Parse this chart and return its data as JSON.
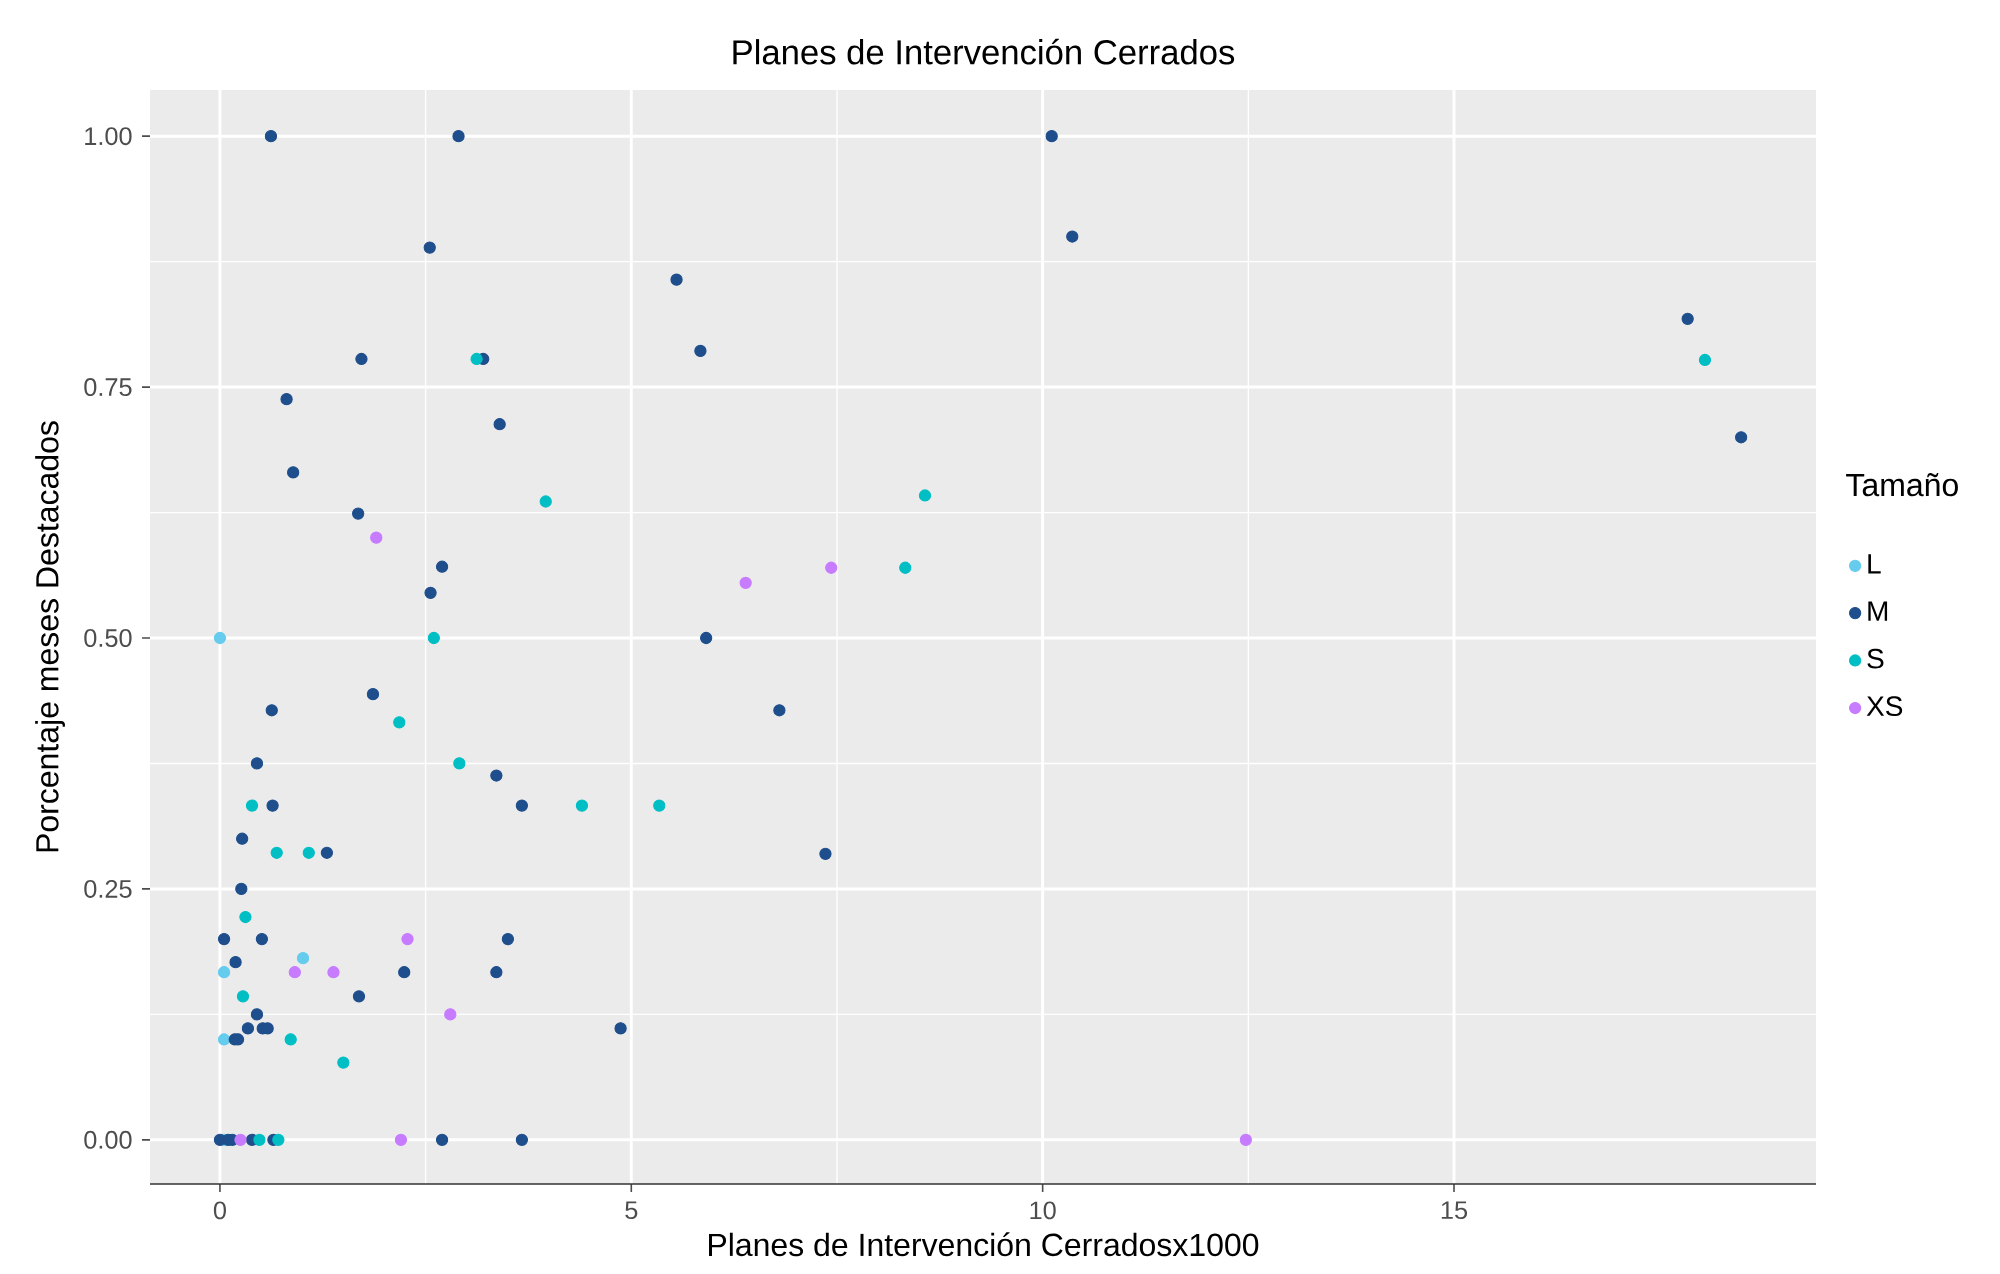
{
  "chart_data": {
    "type": "scatter",
    "title": "Planes de Intervención Cerrados",
    "xlabel": "Planes de Intervención Cerradosx1000",
    "ylabel": "Porcentaje meses Destacados",
    "legend_title": "Tamaño",
    "xlim": [
      -0.85,
      19.4
    ],
    "ylim": [
      -0.044,
      1.046
    ],
    "xticks": [
      0,
      5,
      10,
      15
    ],
    "yticks": [
      {
        "value": 0,
        "label": "0.00"
      },
      {
        "value": 0.25,
        "label": "0.25"
      },
      {
        "value": 0.5,
        "label": "0.50"
      },
      {
        "value": 0.75,
        "label": "0.75"
      },
      {
        "value": 1,
        "label": "1.00"
      }
    ],
    "grid": true,
    "legend": "right",
    "marker": "circle",
    "series": [
      {
        "name": "L",
        "color": "#66ccee",
        "x": [
          0.0,
          0.05,
          0.05,
          1.01,
          0.05
        ],
        "values": [
          0.5,
          0.167,
          0.1,
          0.181,
          0.0
        ]
      },
      {
        "name": "M",
        "color": "#1f4e8c",
        "x": [
          0.62,
          2.9,
          2.55,
          5.55,
          1.72,
          3.2,
          5.84,
          0.81,
          3.4,
          0.89,
          1.68,
          2.7,
          2.56,
          5.91,
          1.86,
          0.63,
          0.45,
          3.36,
          0.64,
          3.67,
          0.27,
          1.3,
          0.26,
          0.05,
          0.51,
          3.5,
          0.19,
          2.24,
          3.36,
          1.69,
          0.45,
          0.34,
          0.52,
          0.58,
          0.18,
          0.22,
          4.87,
          10.11,
          10.36,
          6.8,
          7.36,
          17.84,
          18.49,
          0.0,
          0.1,
          0.15,
          0.39,
          0.65,
          2.7,
          3.67
        ],
        "values": [
          1.0,
          1.0,
          0.889,
          0.857,
          0.778,
          0.778,
          0.786,
          0.738,
          0.713,
          0.665,
          0.624,
          0.571,
          0.545,
          0.5,
          0.444,
          0.428,
          0.375,
          0.363,
          0.333,
          0.333,
          0.3,
          0.286,
          0.25,
          0.2,
          0.2,
          0.2,
          0.177,
          0.167,
          0.167,
          0.143,
          0.125,
          0.111,
          0.111,
          0.111,
          0.1,
          0.1,
          0.111,
          1.0,
          0.9,
          0.428,
          0.285,
          0.818,
          0.7,
          0.0,
          0.0,
          0.0,
          0.0,
          0.0,
          0.0,
          0.0
        ]
      },
      {
        "name": "S",
        "color": "#00bfc4",
        "x": [
          3.12,
          8.57,
          8.33,
          5.34,
          3.96,
          2.6,
          18.05,
          2.18,
          2.91,
          4.4,
          0.39,
          0.69,
          1.08,
          0.31,
          0.28,
          0.86,
          1.5,
          0.48,
          0.71
        ],
        "values": [
          0.778,
          0.642,
          0.57,
          0.333,
          0.636,
          0.5,
          0.777,
          0.416,
          0.375,
          0.333,
          0.333,
          0.286,
          0.286,
          0.222,
          0.143,
          0.1,
          0.077,
          0.0,
          0.0
        ]
      },
      {
        "name": "XS",
        "color": "#c77cff",
        "x": [
          1.9,
          6.39,
          7.43,
          2.28,
          0.91,
          1.38,
          2.8,
          0.25,
          2.2,
          12.47
        ],
        "values": [
          0.6,
          0.555,
          0.57,
          0.2,
          0.167,
          0.167,
          0.125,
          0.0,
          0.0,
          0.0
        ]
      }
    ]
  }
}
